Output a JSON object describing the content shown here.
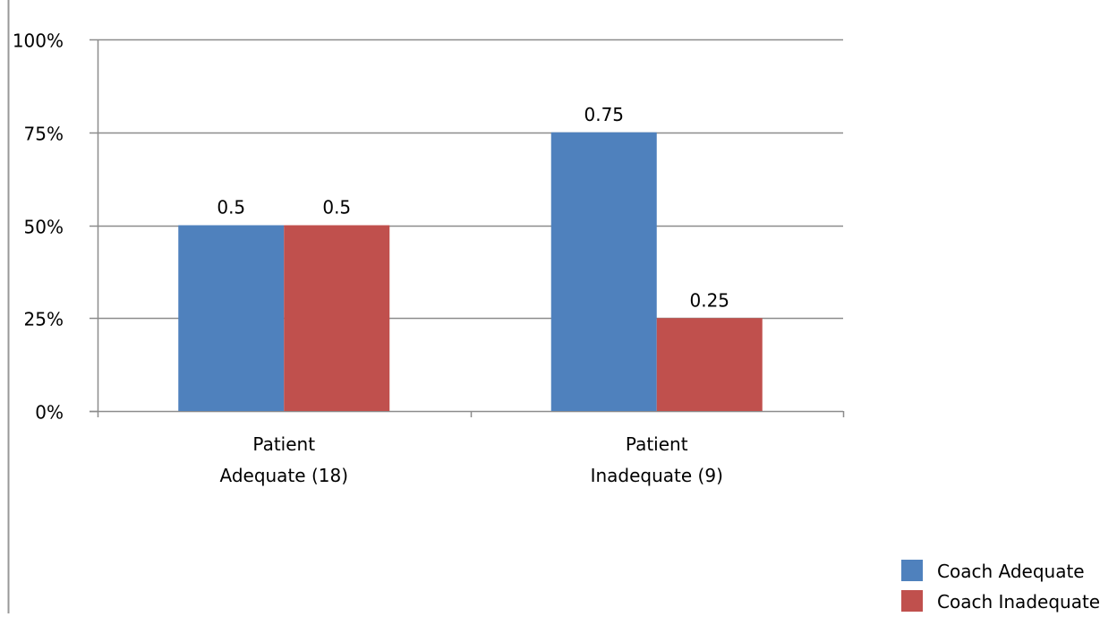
{
  "chart_data": {
    "type": "bar",
    "categories": [
      [
        "Patient",
        "Adequate (18)"
      ],
      [
        "Patient",
        "Inadequate (9)"
      ]
    ],
    "series": [
      {
        "name": "Coach Adequate",
        "values": [
          0.5,
          0.75
        ],
        "color": "#4f81bd",
        "value_labels": [
          "0.5",
          "0.75"
        ]
      },
      {
        "name": "Coach Inadequate",
        "values": [
          0.5,
          0.25
        ],
        "color": "#c0504d",
        "value_labels": [
          "0.5",
          "0.25"
        ]
      }
    ],
    "y_ticks": [
      0,
      0.25,
      0.5,
      0.75,
      1.0
    ],
    "y_tick_labels": [
      "0%",
      "25%",
      "50%",
      "75%",
      "100%"
    ],
    "ylim": [
      0,
      1
    ],
    "grid": true,
    "legend_position": "bottom-right",
    "gridline_color": "#8c8c8c"
  }
}
